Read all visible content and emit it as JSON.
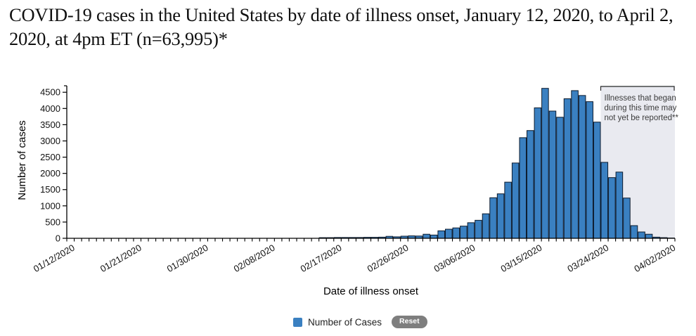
{
  "title": "COVID-19 cases in the United States by date of illness onset, January 12, 2020, to April 2, 2020, at 4pm ET (n=63,995)*",
  "legend": {
    "label": "Number of Cases",
    "reset_label": "Reset"
  },
  "colors": {
    "bar_fill": "#3a80c1",
    "bar_border": "#0c1b2e",
    "shaded_region": "#e9eaf0",
    "annotation_text": "#3c3c3c",
    "axis": "#000000",
    "reset_button": "#7e7e7e"
  },
  "chart_data": {
    "type": "bar",
    "title": "",
    "xlabel": "Date of illness onset",
    "ylabel": "Number of cases",
    "ylim": [
      0,
      4700
    ],
    "yticks": [
      0,
      500,
      1000,
      1500,
      2000,
      2500,
      3000,
      3500,
      4000,
      4500
    ],
    "grid": false,
    "legend_position": "bottom",
    "bar_color": "#3a80c1",
    "bar_border_color": "#0c1b2e",
    "xtick_labels": [
      "01/12/2020",
      "01/21/2020",
      "01/30/2020",
      "02/08/2020",
      "02/17/2020",
      "02/26/2020",
      "03/06/2020",
      "03/15/2020",
      "03/24/2020",
      "04/02/2020"
    ],
    "categories": [
      "01/12/2020",
      "01/13/2020",
      "01/14/2020",
      "01/15/2020",
      "01/16/2020",
      "01/17/2020",
      "01/18/2020",
      "01/19/2020",
      "01/20/2020",
      "01/21/2020",
      "01/22/2020",
      "01/23/2020",
      "01/24/2020",
      "01/25/2020",
      "01/26/2020",
      "01/27/2020",
      "01/28/2020",
      "01/29/2020",
      "01/30/2020",
      "01/31/2020",
      "02/01/2020",
      "02/02/2020",
      "02/03/2020",
      "02/04/2020",
      "02/05/2020",
      "02/06/2020",
      "02/07/2020",
      "02/08/2020",
      "02/09/2020",
      "02/10/2020",
      "02/11/2020",
      "02/12/2020",
      "02/13/2020",
      "02/14/2020",
      "02/15/2020",
      "02/16/2020",
      "02/17/2020",
      "02/18/2020",
      "02/19/2020",
      "02/20/2020",
      "02/21/2020",
      "02/22/2020",
      "02/23/2020",
      "02/24/2020",
      "02/25/2020",
      "02/26/2020",
      "02/27/2020",
      "02/28/2020",
      "02/29/2020",
      "03/01/2020",
      "03/02/2020",
      "03/03/2020",
      "03/04/2020",
      "03/05/2020",
      "03/06/2020",
      "03/07/2020",
      "03/08/2020",
      "03/09/2020",
      "03/10/2020",
      "03/11/2020",
      "03/12/2020",
      "03/13/2020",
      "03/14/2020",
      "03/15/2020",
      "03/16/2020",
      "03/17/2020",
      "03/18/2020",
      "03/19/2020",
      "03/20/2020",
      "03/21/2020",
      "03/22/2020",
      "03/23/2020",
      "03/24/2020",
      "03/25/2020",
      "03/26/2020",
      "03/27/2020",
      "03/28/2020",
      "03/29/2020",
      "03/30/2020",
      "03/31/2020",
      "04/01/2020",
      "04/02/2020"
    ],
    "values": [
      0,
      0,
      0,
      0,
      0,
      0,
      0,
      0,
      0,
      0,
      0,
      0,
      0,
      0,
      0,
      0,
      0,
      0,
      0,
      0,
      0,
      0,
      0,
      0,
      0,
      0,
      0,
      0,
      0,
      0,
      0,
      0,
      0,
      0,
      20,
      20,
      25,
      25,
      25,
      25,
      30,
      30,
      35,
      60,
      45,
      65,
      75,
      70,
      125,
      100,
      230,
      280,
      320,
      375,
      480,
      555,
      755,
      1250,
      1370,
      1730,
      2320,
      3100,
      3320,
      4020,
      4620,
      3920,
      3730,
      4300,
      4550,
      4400,
      4210,
      3580,
      2340,
      1870,
      2040,
      1240,
      390,
      195,
      125,
      35,
      20,
      8
    ],
    "shaded_region": {
      "start": "03/24/2020",
      "end": "04/02/2020",
      "color": "#e9eaf0",
      "annotation": "Illnesses that began during this time may not yet be reported**",
      "annotation_lines": [
        "Illnesses that began",
        "during this time may",
        "not yet be reported**"
      ]
    }
  }
}
